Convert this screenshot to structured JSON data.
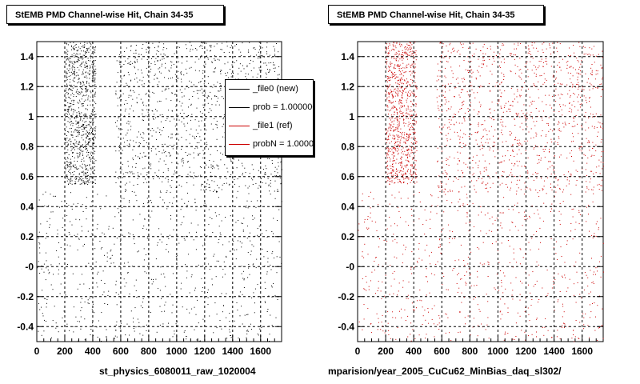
{
  "titles": {
    "left": "StEMB PMD Channel-wise Hit, Chain 34-35",
    "right": "StEMB PMD Channel-wise Hit, Chain 34-35"
  },
  "file_labels": {
    "left": "st_physics_6080011_raw_1020004",
    "right": "mparision/year_2005_CuCu62_MinBias_daq_sl302/"
  },
  "footer": "",
  "legend": [
    {
      "label": "_file0 (new)",
      "color": "#000000"
    },
    {
      "label": "prob = 1.000000",
      "color": "#000000"
    },
    {
      "label": "_file1 (ref)",
      "color": "#cc0000"
    },
    {
      "label": "probN = 1.000000",
      "color": "#cc0000"
    }
  ],
  "chart_data": [
    {
      "type": "scatter",
      "title": "StEMB PMD Channel-wise Hit, Chain 34-35",
      "xlabel": "st_physics_6080011_raw_1020004",
      "ylabel": "",
      "xlim": [
        0,
        1750
      ],
      "ylim": [
        -0.5,
        1.5
      ],
      "xticks": [
        "0",
        "200",
        "400",
        "600",
        "800",
        "1000",
        "1200",
        "1400",
        "1600"
      ],
      "yticks": [
        "-0.4",
        "-0.2",
        "-0",
        "0.2",
        "0.4",
        "0.6",
        "0.8",
        "1",
        "1.2",
        "1.4"
      ],
      "grid": true,
      "marker_color": "#000000",
      "legend_position": "top-right",
      "series": [
        {
          "x_range": [
            200,
            420
          ],
          "y_range": [
            0.55,
            1.5
          ],
          "density": "high"
        },
        {
          "x_range": [
            560,
            1750
          ],
          "y_range": [
            0.5,
            1.5
          ],
          "density": "medium"
        },
        {
          "x_range": [
            0,
            1750
          ],
          "y_range": [
            -0.5,
            0.5
          ],
          "density": "low"
        }
      ]
    },
    {
      "type": "scatter",
      "title": "StEMB PMD Channel-wise Hit, Chain 34-35",
      "xlabel": "mparision/year_2005_CuCu62_MinBias_daq_sl302/",
      "ylabel": "",
      "xlim": [
        0,
        1750
      ],
      "ylim": [
        -0.5,
        1.5
      ],
      "xticks": [
        "0",
        "200",
        "400",
        "600",
        "800",
        "1000",
        "1200",
        "1400",
        "1600"
      ],
      "yticks": [
        "-0.4",
        "-0.2",
        "-0",
        "0.2",
        "0.4",
        "0.6",
        "0.8",
        "1",
        "1.2",
        "1.4"
      ],
      "grid": true,
      "marker_color": "#cc0000",
      "series": [
        {
          "x_range": [
            200,
            420
          ],
          "y_range": [
            0.55,
            1.5
          ],
          "density": "high"
        },
        {
          "x_range": [
            560,
            1750
          ],
          "y_range": [
            0.5,
            1.5
          ],
          "density": "medium"
        },
        {
          "x_range": [
            0,
            1750
          ],
          "y_range": [
            -0.5,
            0.5
          ],
          "density": "low"
        }
      ]
    }
  ]
}
